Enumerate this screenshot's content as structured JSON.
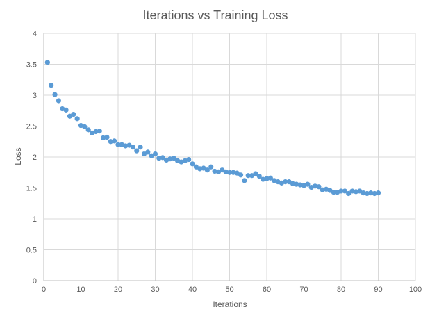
{
  "chart_data": {
    "type": "scatter",
    "title": "Iterations vs Training Loss",
    "xlabel": "Iterations",
    "ylabel": "Loss",
    "xlim": [
      0,
      100
    ],
    "ylim": [
      0,
      4
    ],
    "x_ticks": [
      0,
      10,
      20,
      30,
      40,
      50,
      60,
      70,
      80,
      90,
      100
    ],
    "y_ticks": [
      0,
      0.5,
      1,
      1.5,
      2,
      2.5,
      3,
      3.5,
      4
    ],
    "x_tick_labels": [
      "0",
      "10",
      "20",
      "30",
      "40",
      "50",
      "60",
      "70",
      "80",
      "90",
      "100"
    ],
    "y_tick_labels": [
      "0",
      "0.5",
      "1",
      "1.5",
      "2",
      "2.5",
      "3",
      "3.5",
      "4"
    ],
    "grid": true,
    "legend": "none",
    "marker_color": "#5b9bd5",
    "gridline_color": "#d9d9d9",
    "series": [
      {
        "x": [
          1,
          2,
          3,
          4,
          5,
          6,
          7,
          8,
          9,
          10,
          11,
          12,
          13,
          14,
          15,
          16,
          17,
          18,
          19,
          20,
          21,
          22,
          23,
          24,
          25,
          26,
          27,
          28,
          29,
          30,
          31,
          32,
          33,
          34,
          35,
          36,
          37,
          38,
          39,
          40,
          41,
          42,
          43,
          44,
          45,
          46,
          47,
          48,
          49,
          50,
          51,
          52,
          53,
          54,
          55,
          56,
          57,
          58,
          59,
          60,
          61,
          62,
          63,
          64,
          65,
          66,
          67,
          68,
          69,
          70,
          71,
          72,
          73,
          74,
          75,
          76,
          77,
          78,
          79,
          80,
          81,
          82,
          83,
          84,
          85,
          86,
          87,
          88,
          89,
          90
        ],
        "y": [
          3.53,
          3.16,
          3.01,
          2.91,
          2.78,
          2.76,
          2.66,
          2.69,
          2.62,
          2.51,
          2.49,
          2.44,
          2.39,
          2.41,
          2.42,
          2.31,
          2.32,
          2.25,
          2.26,
          2.2,
          2.2,
          2.18,
          2.19,
          2.16,
          2.1,
          2.16,
          2.05,
          2.08,
          2.02,
          2.05,
          1.98,
          1.99,
          1.95,
          1.97,
          1.98,
          1.94,
          1.92,
          1.94,
          1.96,
          1.89,
          1.84,
          1.81,
          1.82,
          1.79,
          1.84,
          1.77,
          1.76,
          1.79,
          1.76,
          1.75,
          1.75,
          1.74,
          1.71,
          1.62,
          1.7,
          1.7,
          1.73,
          1.69,
          1.64,
          1.65,
          1.66,
          1.62,
          1.6,
          1.58,
          1.6,
          1.6,
          1.57,
          1.56,
          1.55,
          1.54,
          1.56,
          1.51,
          1.53,
          1.52,
          1.47,
          1.48,
          1.46,
          1.43,
          1.43,
          1.45,
          1.45,
          1.41,
          1.45,
          1.44,
          1.45,
          1.42,
          1.41,
          1.42,
          1.41,
          1.42
        ]
      }
    ]
  }
}
